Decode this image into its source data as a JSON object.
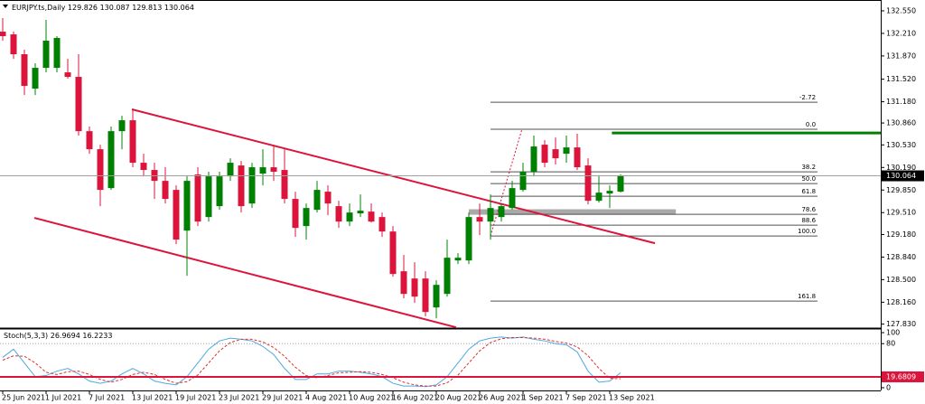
{
  "chart_data": [
    {
      "type": "candlestick",
      "symbol": "EURJPY.ts,Daily",
      "categories": [
        "25 Jun 2021",
        null,
        null,
        null,
        "1 Jul 2021",
        null,
        null,
        null,
        "7 Jul 2021",
        null,
        null,
        null,
        "13 Jul 2021",
        null,
        null,
        null,
        "19 Jul 2021",
        null,
        null,
        null,
        "23 Jul 2021",
        null,
        null,
        null,
        "29 Jul 2021",
        null,
        null,
        null,
        "4 Aug 2021",
        null,
        null,
        null,
        "10 Aug 2021",
        null,
        null,
        null,
        "16 Aug 2021",
        null,
        null,
        null,
        "20 Aug 2021",
        null,
        null,
        null,
        "26 Aug 2021",
        null,
        null,
        null,
        "1 Sep 2021",
        null,
        null,
        null,
        "7 Sep 2021",
        null,
        null,
        null,
        "13 Sep 2021",
        null
      ],
      "ohlc": [
        [
          132.236,
          132.441,
          132.1,
          132.168
        ],
        [
          132.195,
          132.236,
          131.827,
          131.896
        ],
        [
          131.896,
          131.964,
          131.282,
          131.419
        ],
        [
          131.378,
          131.759,
          131.282,
          131.691
        ],
        [
          131.691,
          132.413,
          131.623,
          132.1
        ],
        [
          131.691,
          132.168,
          131.623,
          132.141
        ],
        [
          131.623,
          131.827,
          131.528,
          131.555
        ],
        [
          131.555,
          131.896,
          130.67,
          130.737
        ],
        [
          130.737,
          130.806,
          130.397,
          130.465
        ],
        [
          130.465,
          130.533,
          129.607,
          129.852
        ],
        [
          129.879,
          130.806,
          129.852,
          130.737
        ],
        [
          130.737,
          130.969,
          130.465,
          130.901
        ],
        [
          130.901,
          131.078,
          130.193,
          130.261
        ],
        [
          130.261,
          130.397,
          130.056,
          130.152
        ],
        [
          130.152,
          130.261,
          129.716,
          129.988
        ],
        [
          129.988,
          130.193,
          129.647,
          129.716
        ],
        [
          129.852,
          129.92,
          129.035,
          129.103
        ],
        [
          129.239,
          130.056,
          128.558,
          129.988
        ],
        [
          130.084,
          130.193,
          129.307,
          129.375
        ],
        [
          129.443,
          130.125,
          129.375,
          130.056
        ],
        [
          129.607,
          130.125,
          129.552,
          130.056
        ],
        [
          130.056,
          130.329,
          129.988,
          130.261
        ],
        [
          130.22,
          130.288,
          129.511,
          129.607
        ],
        [
          129.647,
          130.261,
          129.579,
          130.193
        ],
        [
          130.097,
          130.465,
          129.92,
          130.193
        ],
        [
          130.193,
          130.533,
          129.988,
          130.125
        ],
        [
          130.152,
          130.465,
          129.647,
          129.716
        ],
        [
          129.716,
          129.825,
          129.143,
          129.279
        ],
        [
          129.307,
          129.647,
          129.103,
          129.579
        ],
        [
          129.552,
          129.988,
          129.511,
          129.852
        ],
        [
          129.825,
          129.92,
          129.471,
          129.647
        ],
        [
          129.607,
          129.688,
          129.279,
          129.375
        ],
        [
          129.375,
          129.647,
          129.307,
          129.511
        ],
        [
          129.498,
          129.784,
          129.443,
          129.539
        ],
        [
          129.525,
          129.647,
          129.36,
          129.375
        ],
        [
          129.443,
          129.511,
          129.143,
          129.225
        ],
        [
          129.225,
          129.307,
          128.544,
          128.585
        ],
        [
          128.626,
          128.871,
          128.217,
          128.285
        ],
        [
          128.517,
          128.762,
          128.149,
          128.244
        ],
        [
          128.517,
          128.626,
          127.945,
          128.013
        ],
        [
          128.081,
          128.49,
          127.917,
          128.421
        ],
        [
          128.285,
          129.103,
          128.244,
          128.83
        ],
        [
          128.789,
          128.898,
          128.735,
          128.83
        ],
        [
          128.789,
          129.511,
          128.735,
          129.443
        ],
        [
          129.443,
          129.647,
          129.171,
          129.375
        ],
        [
          129.375,
          129.784,
          129.103,
          129.579
        ],
        [
          129.443,
          129.647,
          129.375,
          129.607
        ],
        [
          129.579,
          129.988,
          129.552,
          129.879
        ],
        [
          129.852,
          130.261,
          129.825,
          130.125
        ],
        [
          130.125,
          130.67,
          130.056,
          130.506
        ],
        [
          130.533,
          130.601,
          130.193,
          130.261
        ],
        [
          130.465,
          130.642,
          130.234,
          130.329
        ],
        [
          130.397,
          130.67,
          130.261,
          130.492
        ],
        [
          130.492,
          130.697,
          130.152,
          130.193
        ],
        [
          130.22,
          130.329,
          129.634,
          129.688
        ],
        [
          129.688,
          130.056,
          129.661,
          129.811
        ],
        [
          129.797,
          129.92,
          129.579,
          129.838
        ],
        [
          129.826,
          130.087,
          129.813,
          130.064
        ]
      ],
      "up_color": "#008000",
      "down_color": "#dc143c",
      "ylim": [
        127.77,
        132.713
      ],
      "yticks": [
        {
          "value": 132.55,
          "label": "132.550"
        },
        {
          "value": 132.21,
          "label": "132.210"
        },
        {
          "value": 131.87,
          "label": "131.870"
        },
        {
          "value": 131.52,
          "label": "131.520"
        },
        {
          "value": 131.18,
          "label": "131.180"
        },
        {
          "value": 130.86,
          "label": "130.860"
        },
        {
          "value": 130.53,
          "label": "130.530"
        },
        {
          "value": 130.19,
          "label": "130.190"
        },
        {
          "value": 129.85,
          "label": "129.850"
        },
        {
          "value": 129.51,
          "label": "129.510"
        },
        {
          "value": 129.18,
          "label": "129.180"
        },
        {
          "value": 128.84,
          "label": "128.840"
        },
        {
          "value": 128.5,
          "label": "128.500"
        },
        {
          "value": 128.16,
          "label": "128.160"
        },
        {
          "value": 127.83,
          "label": "127.830"
        }
      ],
      "current_price_line": true,
      "trendlines": [
        {
          "points": [
            [
              11.92,
              131.065
            ],
            [
              60.17,
              129.048
            ]
          ],
          "color": "#dc143c"
        },
        {
          "points": [
            [
              2.92,
              129.43
            ],
            [
              41.83,
              127.781
            ]
          ],
          "color": "#dc143c"
        }
      ],
      "hlines": [
        {
          "value": 130.71,
          "start": 56.2,
          "color": "#008000"
        }
      ],
      "zones": [
        {
          "x": [
            43,
            62.1
          ],
          "y": [
            129.478,
            129.56
          ],
          "color": "#a9a9a9"
        }
      ],
      "fibonacci": {
        "start": 45,
        "end": 75.17,
        "color": "#505050",
        "base": [
          [
            45,
            129.157
          ],
          [
            47.9,
            130.765
          ]
        ],
        "levels": [
          {
            "label": "-2.72",
            "value": 131.173
          },
          {
            "label": "0.0",
            "value": 130.765
          },
          {
            "label": "38.2",
            "value": 130.124
          },
          {
            "label": "50.0",
            "value": 129.947
          },
          {
            "label": "61.8",
            "value": 129.757
          },
          {
            "label": "78.6",
            "value": 129.484
          },
          {
            "label": "88.6",
            "value": 129.321
          },
          {
            "label": "100.0",
            "value": 129.157
          },
          {
            "label": "161.8",
            "value": 128.176
          }
        ]
      }
    },
    {
      "type": "line",
      "title": "Stoch(5,3,3)",
      "series": [
        {
          "color": "#4fa8e0",
          "style": "solid",
          "values": [
            55,
            70,
            45,
            20,
            22,
            30,
            35,
            25,
            12,
            8,
            12,
            25,
            35,
            25,
            12,
            8,
            5,
            20,
            45,
            70,
            85,
            90,
            88,
            85,
            75,
            60,
            35,
            15,
            15,
            25,
            25,
            30,
            30,
            28,
            25,
            20,
            8,
            3,
            3,
            2,
            5,
            20,
            45,
            70,
            85,
            90,
            92,
            90,
            92,
            88,
            85,
            80,
            78,
            65,
            30,
            10,
            12,
            26.9694
          ]
        },
        {
          "color": "#e03030",
          "style": "dashed",
          "values": [
            50,
            58,
            57,
            45,
            28,
            24,
            29,
            30,
            24,
            15,
            10,
            15,
            24,
            28,
            24,
            15,
            8,
            11,
            23,
            45,
            67,
            82,
            88,
            88,
            83,
            73,
            57,
            37,
            22,
            18,
            22,
            27,
            28,
            29,
            28,
            24,
            18,
            10,
            5,
            3,
            3,
            9,
            23,
            45,
            67,
            82,
            89,
            91,
            91,
            90,
            88,
            84,
            81,
            74,
            58,
            35,
            17,
            16.2233
          ]
        }
      ],
      "ylim": [
        -5,
        105
      ],
      "yticks": [
        100,
        80,
        0
      ],
      "levels": [
        80
      ],
      "hlines": [
        {
          "value": 19.6809,
          "color": "#dc143c"
        }
      ]
    }
  ]
}
